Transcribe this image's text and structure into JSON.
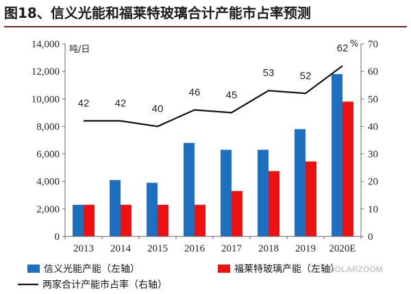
{
  "title": "图18、信义光能和福莱特玻璃合计产能市占率预测",
  "watermark": "DOLARZOOM",
  "colors": {
    "xinyi": "#1f6fc0",
    "flat": "#ee1111",
    "share": "#111111",
    "title_rule": "#7a2020"
  },
  "chart_data": {
    "type": "bar",
    "categories": [
      "2013",
      "2014",
      "2015",
      "2016",
      "2017",
      "2018",
      "2019",
      "2020E"
    ],
    "series": [
      {
        "name": "信义光能产能（左轴）",
        "type": "bar",
        "axis": "left",
        "values": [
          2300,
          4100,
          3900,
          6800,
          6300,
          6300,
          7800,
          11800
        ]
      },
      {
        "name": "福莱特玻璃产能（左轴）",
        "type": "bar",
        "axis": "left",
        "values": [
          2300,
          2300,
          2300,
          2300,
          3300,
          4750,
          5450,
          9800
        ]
      },
      {
        "name": "两家合计产能市占率（右轴）",
        "type": "line",
        "axis": "right",
        "values": [
          42,
          42,
          40,
          46,
          45,
          53,
          52,
          62
        ]
      }
    ],
    "y_left": {
      "label": "吨/日",
      "min": 0,
      "max": 14000,
      "ticks": [
        "0",
        "2,000",
        "4,000",
        "6,000",
        "8,000",
        "10,000",
        "12,000",
        "14,000"
      ]
    },
    "y_right": {
      "label": "%",
      "min": 0,
      "max": 70,
      "ticks": [
        "0",
        "10",
        "20",
        "30",
        "40",
        "50",
        "60",
        "70"
      ]
    },
    "data_labels": [
      "42",
      "42",
      "40",
      "46",
      "45",
      "53",
      "52",
      "62"
    ],
    "legend": {
      "position": "bottom"
    },
    "grid": false
  }
}
